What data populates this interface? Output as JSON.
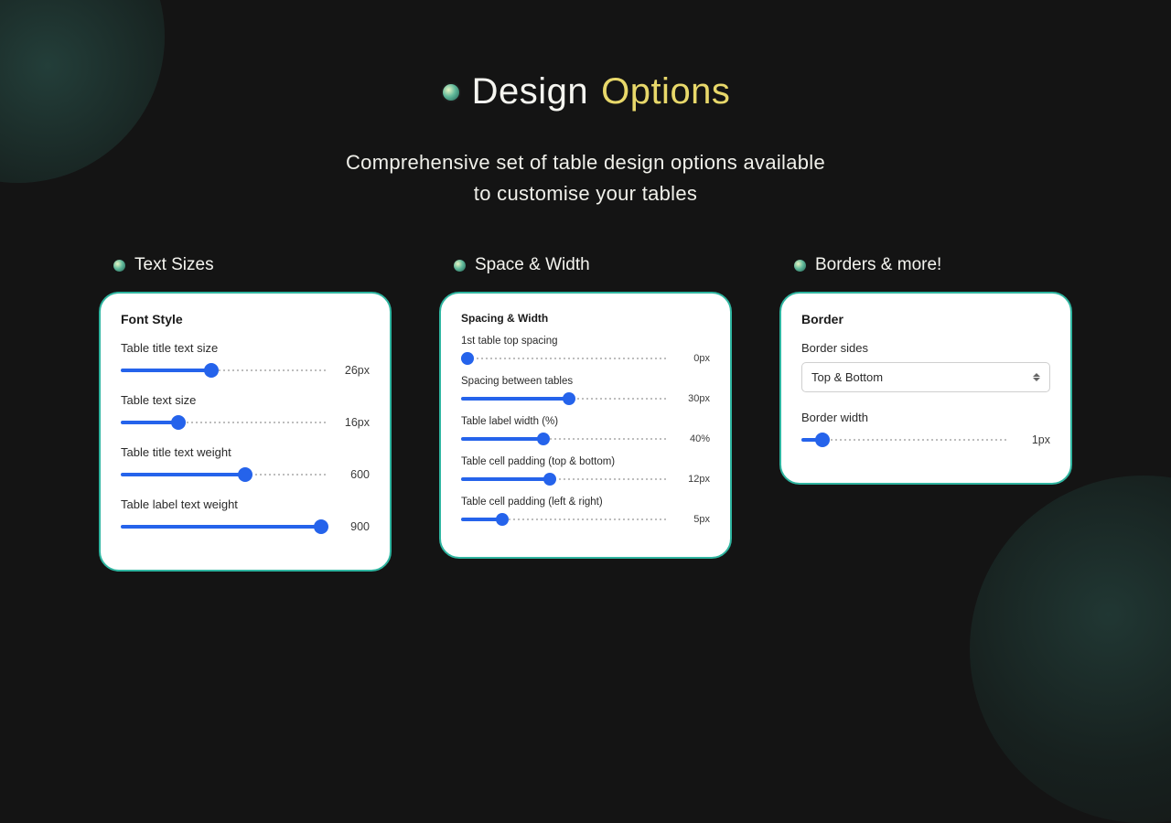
{
  "header": {
    "title_word1": "Design",
    "title_word2": "Options",
    "subtitle_line1": "Comprehensive set of table design options available",
    "subtitle_line2": "to customise your tables"
  },
  "columns": [
    {
      "title": "Text Sizes",
      "heading": "Font Style",
      "heading_size": "normal",
      "sliders": [
        {
          "label": "Table title text size",
          "value": "26px",
          "fill_pct": 44,
          "size": "normal"
        },
        {
          "label": "Table text size",
          "value": "16px",
          "fill_pct": 28,
          "size": "normal"
        },
        {
          "label": "Table title text weight",
          "value": "600",
          "fill_pct": 60,
          "size": "normal"
        },
        {
          "label": "Table label text weight",
          "value": "900",
          "fill_pct": 97,
          "size": "normal"
        }
      ]
    },
    {
      "title": "Space & Width",
      "heading": "Spacing & Width",
      "heading_size": "small",
      "sliders": [
        {
          "label": "1st table top spacing",
          "value": "0px",
          "fill_pct": 3,
          "size": "small"
        },
        {
          "label": "Spacing between tables",
          "value": "30px",
          "fill_pct": 52,
          "size": "small"
        },
        {
          "label": "Table label width (%)",
          "value": "40%",
          "fill_pct": 40,
          "size": "small"
        },
        {
          "label": "Table cell padding (top & bottom)",
          "value": "12px",
          "fill_pct": 43,
          "size": "small"
        },
        {
          "label": "Table cell padding (left & right)",
          "value": "5px",
          "fill_pct": 20,
          "size": "small"
        }
      ]
    },
    {
      "title": "Borders & more!",
      "heading": "Border",
      "heading_size": "normal",
      "select": {
        "label": "Border sides",
        "value": "Top & Bottom"
      },
      "sliders": [
        {
          "label": "Border width",
          "value": "1px",
          "fill_pct": 10,
          "size": "normal"
        }
      ]
    }
  ],
  "colors": {
    "bg": "#141414",
    "card_border": "#2fb5a0",
    "slider_fill": "#2563eb",
    "title_primary": "#f5f5f0",
    "title_accent": "#e8d86a"
  }
}
